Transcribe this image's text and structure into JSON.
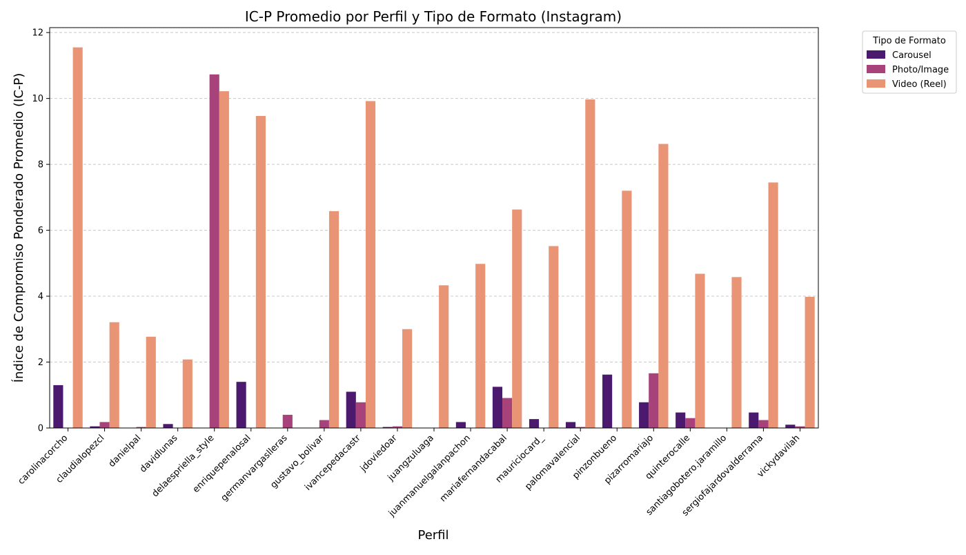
{
  "chart_data": {
    "type": "bar",
    "title": "IC-P Promedio por Perfil y Tipo de Formato (Instagram)",
    "xlabel": "Perfil",
    "ylabel": "Índice de Compromiso Ponderado Promedio (IC-P)",
    "ylim": [
      0,
      12.15
    ],
    "yticks": [
      0,
      2,
      4,
      6,
      8,
      10,
      12
    ],
    "grid": "horizontal dashed",
    "legend": {
      "title": "Tipo de Formato",
      "placement": "outside top-right"
    },
    "categories": [
      "carolinacorcho",
      "claudialopezcl",
      "danielpal",
      "davidlunas",
      "delaespriella_style",
      "enriquepenalosal",
      "germanvargaslleras",
      "gustavo_bolivar",
      "ivancepedacastr",
      "jdoviedoar",
      "juangzuluaga",
      "juanmanuelgalanpachon",
      "mariafernandacabal",
      "mauriciocard_",
      "palomavalencial",
      "pinzonbueno",
      "pizarromariajo",
      "quinterocalle",
      "santiagobotero.jaramillo",
      "sergiofajardovalderrama",
      "vickydavilah"
    ],
    "series": [
      {
        "name": "Carousel",
        "color": "#4b1a6e",
        "values": [
          1.3,
          0.05,
          null,
          0.12,
          null,
          1.4,
          null,
          null,
          1.1,
          0.03,
          null,
          0.18,
          1.25,
          0.27,
          0.18,
          1.62,
          0.78,
          0.47,
          null,
          0.47,
          0.1
        ]
      },
      {
        "name": "Photo/Image",
        "color": "#a7437a",
        "values": [
          null,
          0.18,
          0.03,
          null,
          10.73,
          null,
          0.4,
          0.24,
          0.78,
          0.05,
          null,
          null,
          0.91,
          null,
          0.03,
          null,
          1.66,
          0.3,
          null,
          0.24,
          0.05
        ]
      },
      {
        "name": "Video (Reel)",
        "color": "#e99475",
        "values": [
          11.55,
          3.21,
          2.77,
          2.08,
          10.22,
          9.47,
          null,
          6.58,
          9.92,
          3.0,
          4.33,
          4.98,
          6.63,
          5.52,
          9.97,
          7.2,
          8.62,
          4.68,
          4.58,
          7.45,
          3.98
        ]
      }
    ]
  }
}
